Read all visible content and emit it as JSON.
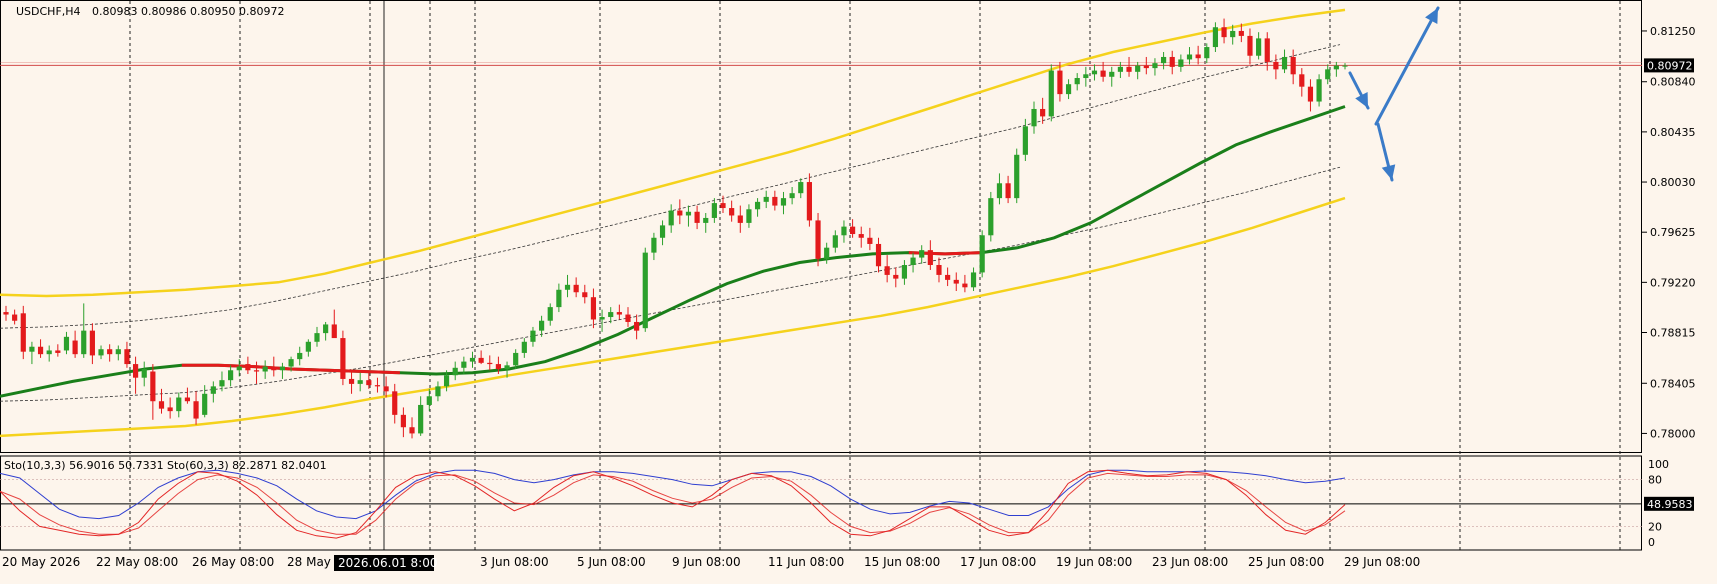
{
  "header": {
    "symbol": "USDCHF,H4",
    "ohlc": "0.80983 0.80986 0.80950 0.80972"
  },
  "price_axis": {
    "ticks": [
      "0.81250",
      "0.80840",
      "0.80435",
      "0.80030",
      "0.79625",
      "0.79220",
      "0.78815",
      "0.78405",
      "0.78000"
    ],
    "tick_values": [
      0.8125,
      0.8084,
      0.80435,
      0.8003,
      0.79625,
      0.7922,
      0.78815,
      0.78405,
      0.78
    ],
    "current_price_label": "0.80972",
    "current_price": 0.80972
  },
  "stoch_panel": {
    "label": "Sto(10,3,3) 56.9016 50.7331  Sto(60,3,3) 82.2871 82.0401",
    "ticks": [
      "100",
      "80",
      "20",
      "0"
    ],
    "tick_values": [
      100,
      80,
      20,
      0
    ],
    "current_label": "48.9583",
    "current_value": 48.9583
  },
  "time_axis": {
    "labels": [
      "20 May 2026",
      "22 May 08:00",
      "26 May 08:00",
      "28 May",
      "3 Jun 08:00",
      "5 Jun 08:00",
      "9 Jun 08:00",
      "11 Jun 08:00",
      "15 Jun 08:00",
      "17 Jun 08:00",
      "19 Jun 08:00",
      "23 Jun 08:00",
      "25 Jun 08:00",
      "29 Jun 08:00"
    ],
    "cursor_label": "2026.06.01 8:00"
  },
  "colors": {
    "background": "#fdf5ec",
    "bull": "#2ca02c",
    "bear": "#e31a1c",
    "ma": "#1a7f1a",
    "band_outer": "#f5d21c",
    "band_inner": "#333333",
    "stoch_fast": "#e32626",
    "stoch_slow": "#2f3fd0",
    "arrows": "#3a7bc8",
    "price_line": "#d24a4a"
  },
  "chart_data": {
    "type": "candlestick",
    "instrument": "USDCHF",
    "timeframe": "H4",
    "y_range": [
      0.7785,
      0.815
    ],
    "candles_ohlc": [
      [
        0.7898,
        0.7903,
        0.7891,
        0.7896
      ],
      [
        0.7896,
        0.79,
        0.7888,
        0.7891
      ],
      [
        0.7897,
        0.7903,
        0.786,
        0.7866
      ],
      [
        0.7866,
        0.7874,
        0.7856,
        0.787
      ],
      [
        0.787,
        0.7876,
        0.7861,
        0.7864
      ],
      [
        0.7864,
        0.7871,
        0.7858,
        0.7867
      ],
      [
        0.7867,
        0.7872,
        0.7862,
        0.7865
      ],
      [
        0.7867,
        0.7882,
        0.7864,
        0.7878
      ],
      [
        0.7875,
        0.7883,
        0.7861,
        0.7864
      ],
      [
        0.7864,
        0.7905,
        0.7861,
        0.7883
      ],
      [
        0.7883,
        0.7889,
        0.7856,
        0.7863
      ],
      [
        0.7863,
        0.7871,
        0.786,
        0.7868
      ],
      [
        0.7868,
        0.7872,
        0.7858,
        0.7864
      ],
      [
        0.7864,
        0.7871,
        0.7859,
        0.7868
      ],
      [
        0.7868,
        0.7874,
        0.7853,
        0.7856
      ],
      [
        0.7856,
        0.7862,
        0.7832,
        0.7845
      ],
      [
        0.7845,
        0.7858,
        0.7838,
        0.7852
      ],
      [
        0.785,
        0.7856,
        0.7811,
        0.7826
      ],
      [
        0.7826,
        0.7836,
        0.7816,
        0.782
      ],
      [
        0.7821,
        0.7829,
        0.7812,
        0.7818
      ],
      [
        0.7818,
        0.7833,
        0.7813,
        0.7829
      ],
      [
        0.7829,
        0.7837,
        0.7824,
        0.7826
      ],
      [
        0.7826,
        0.7834,
        0.7807,
        0.7812
      ],
      [
        0.7815,
        0.7839,
        0.7813,
        0.7832
      ],
      [
        0.7832,
        0.7842,
        0.7825,
        0.7838
      ],
      [
        0.7838,
        0.785,
        0.7834,
        0.7843
      ],
      [
        0.7843,
        0.7855,
        0.7838,
        0.7851
      ],
      [
        0.7851,
        0.786,
        0.7846,
        0.7854
      ],
      [
        0.7856,
        0.7862,
        0.7848,
        0.7851
      ],
      [
        0.7851,
        0.7858,
        0.784,
        0.785
      ],
      [
        0.785,
        0.7859,
        0.7844,
        0.7854
      ],
      [
        0.7854,
        0.7862,
        0.7846,
        0.7851
      ],
      [
        0.7851,
        0.7857,
        0.7844,
        0.7854
      ],
      [
        0.7854,
        0.7862,
        0.785,
        0.786
      ],
      [
        0.786,
        0.787,
        0.7855,
        0.7865
      ],
      [
        0.7866,
        0.7876,
        0.7862,
        0.7874
      ],
      [
        0.7874,
        0.7886,
        0.787,
        0.7881
      ],
      [
        0.7881,
        0.789,
        0.7875,
        0.7888
      ],
      [
        0.7888,
        0.79,
        0.7883,
        0.7877
      ],
      [
        0.7877,
        0.7883,
        0.7839,
        0.7844
      ],
      [
        0.7844,
        0.785,
        0.7832,
        0.784
      ],
      [
        0.784,
        0.7849,
        0.7834,
        0.7843
      ],
      [
        0.7843,
        0.7849,
        0.7836,
        0.7839
      ],
      [
        0.7839,
        0.7845,
        0.7833,
        0.7838
      ],
      [
        0.7838,
        0.7846,
        0.7829,
        0.7834
      ],
      [
        0.7834,
        0.784,
        0.7808,
        0.7815
      ],
      [
        0.7815,
        0.7821,
        0.7797,
        0.7805
      ],
      [
        0.7805,
        0.7813,
        0.7796,
        0.78
      ],
      [
        0.78,
        0.783,
        0.7798,
        0.7823
      ],
      [
        0.7823,
        0.7836,
        0.7818,
        0.783
      ],
      [
        0.783,
        0.7842,
        0.7826,
        0.7838
      ],
      [
        0.7838,
        0.7851,
        0.7834,
        0.7847
      ],
      [
        0.7847,
        0.7858,
        0.7843,
        0.7853
      ],
      [
        0.7853,
        0.7862,
        0.7848,
        0.7858
      ],
      [
        0.7858,
        0.7866,
        0.7853,
        0.7861
      ],
      [
        0.7861,
        0.7867,
        0.7856,
        0.7857
      ],
      [
        0.7857,
        0.7863,
        0.7851,
        0.7856
      ],
      [
        0.7856,
        0.7862,
        0.7848,
        0.7852
      ],
      [
        0.7852,
        0.7858,
        0.7845,
        0.7855
      ],
      [
        0.7855,
        0.7868,
        0.7852,
        0.7865
      ],
      [
        0.7865,
        0.7877,
        0.7861,
        0.7874
      ],
      [
        0.7874,
        0.7886,
        0.787,
        0.7883
      ],
      [
        0.7883,
        0.7895,
        0.7878,
        0.7891
      ],
      [
        0.7891,
        0.7905,
        0.7887,
        0.7902
      ],
      [
        0.7902,
        0.7921,
        0.7898,
        0.7916
      ],
      [
        0.7916,
        0.7928,
        0.791,
        0.792
      ],
      [
        0.792,
        0.7926,
        0.791,
        0.7914
      ],
      [
        0.7914,
        0.792,
        0.7905,
        0.791
      ],
      [
        0.791,
        0.7917,
        0.7885,
        0.7892
      ],
      [
        0.7892,
        0.79,
        0.7882,
        0.7894
      ],
      [
        0.7894,
        0.7902,
        0.7889,
        0.7898
      ],
      [
        0.7898,
        0.7904,
        0.7892,
        0.7896
      ],
      [
        0.7896,
        0.7902,
        0.7886,
        0.789
      ],
      [
        0.789,
        0.7896,
        0.7876,
        0.7883
      ],
      [
        0.7885,
        0.795,
        0.7882,
        0.7946
      ],
      [
        0.7946,
        0.7962,
        0.794,
        0.7958
      ],
      [
        0.7958,
        0.7972,
        0.7952,
        0.7968
      ],
      [
        0.7968,
        0.7985,
        0.7962,
        0.798
      ],
      [
        0.798,
        0.7989,
        0.7969,
        0.7976
      ],
      [
        0.7976,
        0.7984,
        0.7967,
        0.7979
      ],
      [
        0.7979,
        0.7984,
        0.7965,
        0.797
      ],
      [
        0.797,
        0.7978,
        0.7962,
        0.7974
      ],
      [
        0.7974,
        0.799,
        0.797,
        0.7986
      ],
      [
        0.7986,
        0.7992,
        0.7978,
        0.7982
      ],
      [
        0.7982,
        0.7988,
        0.7971,
        0.7976
      ],
      [
        0.7976,
        0.7984,
        0.7962,
        0.797
      ],
      [
        0.797,
        0.7985,
        0.7966,
        0.7981
      ],
      [
        0.7981,
        0.799,
        0.7975,
        0.7987
      ],
      [
        0.7987,
        0.7996,
        0.7982,
        0.7991
      ],
      [
        0.7991,
        0.7996,
        0.798,
        0.7984
      ],
      [
        0.7984,
        0.7995,
        0.7977,
        0.799
      ],
      [
        0.799,
        0.7999,
        0.7985,
        0.7994
      ],
      [
        0.7994,
        0.8006,
        0.799,
        0.8003
      ],
      [
        0.8003,
        0.801,
        0.7967,
        0.7972
      ],
      [
        0.7972,
        0.7978,
        0.7935,
        0.7941
      ],
      [
        0.7941,
        0.7954,
        0.7937,
        0.795
      ],
      [
        0.795,
        0.7964,
        0.7946,
        0.796
      ],
      [
        0.796,
        0.7972,
        0.7954,
        0.7967
      ],
      [
        0.7967,
        0.7973,
        0.7958,
        0.7961
      ],
      [
        0.7961,
        0.7967,
        0.795,
        0.7958
      ],
      [
        0.7958,
        0.7966,
        0.7948,
        0.7953
      ],
      [
        0.7953,
        0.7958,
        0.793,
        0.7935
      ],
      [
        0.7935,
        0.7944,
        0.7922,
        0.7928
      ],
      [
        0.7928,
        0.7934,
        0.7918,
        0.7925
      ],
      [
        0.7925,
        0.794,
        0.792,
        0.7936
      ],
      [
        0.7936,
        0.7946,
        0.793,
        0.7942
      ],
      [
        0.7942,
        0.7952,
        0.7937,
        0.7948
      ],
      [
        0.7948,
        0.7956,
        0.7932,
        0.7936
      ],
      [
        0.7936,
        0.7942,
        0.7922,
        0.7928
      ],
      [
        0.7928,
        0.7934,
        0.7919,
        0.7924
      ],
      [
        0.7924,
        0.793,
        0.7915,
        0.7921
      ],
      [
        0.7921,
        0.7928,
        0.7914,
        0.7918
      ],
      [
        0.7918,
        0.7934,
        0.7915,
        0.793
      ],
      [
        0.793,
        0.7964,
        0.7926,
        0.796
      ],
      [
        0.796,
        0.7995,
        0.7955,
        0.799
      ],
      [
        0.799,
        0.801,
        0.7985,
        0.8002
      ],
      [
        0.8002,
        0.8008,
        0.7986,
        0.799
      ],
      [
        0.799,
        0.803,
        0.7986,
        0.8025
      ],
      [
        0.8025,
        0.8054,
        0.802,
        0.8048
      ],
      [
        0.8048,
        0.8068,
        0.8042,
        0.8062
      ],
      [
        0.8062,
        0.8071,
        0.805,
        0.8056
      ],
      [
        0.8056,
        0.8098,
        0.8052,
        0.8093
      ],
      [
        0.8093,
        0.81,
        0.8068,
        0.8074
      ],
      [
        0.8074,
        0.8086,
        0.807,
        0.8082
      ],
      [
        0.8082,
        0.8091,
        0.8077,
        0.8087
      ],
      [
        0.8087,
        0.8096,
        0.808,
        0.809
      ],
      [
        0.809,
        0.8098,
        0.8085,
        0.8093
      ],
      [
        0.8093,
        0.81,
        0.8084,
        0.8088
      ],
      [
        0.8088,
        0.8096,
        0.808,
        0.8092
      ],
      [
        0.8092,
        0.81,
        0.8087,
        0.8096
      ],
      [
        0.8096,
        0.8104,
        0.8088,
        0.8092
      ],
      [
        0.8092,
        0.81,
        0.8086,
        0.8097
      ],
      [
        0.8097,
        0.8104,
        0.809,
        0.8095
      ],
      [
        0.8095,
        0.8103,
        0.8089,
        0.8099
      ],
      [
        0.8099,
        0.8108,
        0.8094,
        0.8104
      ],
      [
        0.8104,
        0.8109,
        0.809,
        0.8096
      ],
      [
        0.8096,
        0.8106,
        0.8092,
        0.8102
      ],
      [
        0.8102,
        0.8112,
        0.8098,
        0.8106
      ],
      [
        0.8106,
        0.8113,
        0.8098,
        0.8103
      ],
      [
        0.8103,
        0.8115,
        0.8099,
        0.8112
      ],
      [
        0.8112,
        0.8132,
        0.8108,
        0.8128
      ],
      [
        0.8128,
        0.8135,
        0.8115,
        0.812
      ],
      [
        0.812,
        0.813,
        0.8114,
        0.8125
      ],
      [
        0.8125,
        0.8131,
        0.8116,
        0.8121
      ],
      [
        0.8121,
        0.8127,
        0.8098,
        0.8105
      ],
      [
        0.8105,
        0.8124,
        0.8102,
        0.8119
      ],
      [
        0.8119,
        0.8124,
        0.8093,
        0.81
      ],
      [
        0.81,
        0.8106,
        0.8086,
        0.8094
      ],
      [
        0.8094,
        0.811,
        0.8091,
        0.8104
      ],
      [
        0.8104,
        0.811,
        0.8082,
        0.809
      ],
      [
        0.809,
        0.8095,
        0.8072,
        0.808
      ],
      [
        0.808,
        0.8086,
        0.806,
        0.8068
      ],
      [
        0.8068,
        0.809,
        0.8064,
        0.8086
      ],
      [
        0.8086,
        0.8098,
        0.8082,
        0.8094
      ],
      [
        0.8094,
        0.81,
        0.8088,
        0.8097
      ],
      [
        0.8097,
        0.8099,
        0.8094,
        0.8097
      ]
    ],
    "moving_average": [
      0.783,
      0.7836,
      0.7842,
      0.7847,
      0.7852,
      0.7855,
      0.7855,
      0.7854,
      0.7852,
      0.7851,
      0.785,
      0.7849,
      0.7848,
      0.7849,
      0.7852,
      0.7858,
      0.7868,
      0.788,
      0.7894,
      0.7908,
      0.7921,
      0.7931,
      0.7938,
      0.7942,
      0.7945,
      0.7946,
      0.7945,
      0.7946,
      0.795,
      0.7958,
      0.797,
      0.7986,
      0.8002,
      0.8018,
      0.8033,
      0.8044,
      0.8054,
      0.8064
    ],
    "band_upper": [
      0.7912,
      0.7911,
      0.7912,
      0.7914,
      0.7916,
      0.7919,
      0.7922,
      0.7929,
      0.7938,
      0.7947,
      0.7957,
      0.7967,
      0.7977,
      0.7987,
      0.7997,
      0.8007,
      0.8017,
      0.8027,
      0.8038,
      0.805,
      0.8062,
      0.8074,
      0.8086,
      0.8098,
      0.8108,
      0.8116,
      0.8124,
      0.8131,
      0.8137,
      0.8142
    ],
    "band_lower": [
      0.7798,
      0.78,
      0.7802,
      0.7804,
      0.7806,
      0.781,
      0.7815,
      0.7821,
      0.7828,
      0.7834,
      0.784,
      0.7847,
      0.7853,
      0.7859,
      0.7865,
      0.7871,
      0.7877,
      0.7883,
      0.7889,
      0.7895,
      0.7902,
      0.791,
      0.7918,
      0.7926,
      0.7935,
      0.7945,
      0.7955,
      0.7966,
      0.7978,
      0.799
    ],
    "band_middle_upper": [
      0.7885,
      0.7886,
      0.7888,
      0.7891,
      0.7895,
      0.79,
      0.7907,
      0.7915,
      0.7923,
      0.7931,
      0.794,
      0.7948,
      0.7957,
      0.7966,
      0.7975,
      0.7984,
      0.7993,
      0.8002,
      0.8011,
      0.802,
      0.8029,
      0.8038,
      0.8047,
      0.8057,
      0.8067,
      0.8077,
      0.8087,
      0.8096,
      0.8105,
      0.8114
    ],
    "band_middle_lower": [
      0.7826,
      0.7827,
      0.7829,
      0.7831,
      0.7833,
      0.7837,
      0.7842,
      0.7848,
      0.7854,
      0.7861,
      0.7868,
      0.7875,
      0.7882,
      0.7889,
      0.7896,
      0.7903,
      0.791,
      0.7917,
      0.7924,
      0.7931,
      0.7938,
      0.7945,
      0.7952,
      0.796,
      0.7968,
      0.7977,
      0.7986,
      0.7995,
      0.8005,
      0.8015
    ],
    "stoch_fast": [
      65,
      40,
      20,
      15,
      10,
      8,
      10,
      25,
      55,
      75,
      90,
      88,
      78,
      60,
      35,
      15,
      8,
      5,
      12,
      40,
      70,
      85,
      90,
      85,
      72,
      55,
      40,
      50,
      70,
      85,
      90,
      82,
      72,
      60,
      50,
      45,
      60,
      80,
      88,
      85,
      72,
      50,
      25,
      10,
      8,
      15,
      30,
      45,
      45,
      30,
      15,
      8,
      12,
      40,
      75,
      90,
      92,
      88,
      85,
      86,
      90,
      88,
      80,
      60,
      35,
      15,
      10,
      25,
      48
    ],
    "stoch_slow": [
      65,
      55,
      35,
      22,
      14,
      10,
      10,
      18,
      40,
      62,
      80,
      86,
      82,
      70,
      50,
      28,
      15,
      10,
      10,
      28,
      55,
      75,
      85,
      86,
      78,
      63,
      50,
      48,
      60,
      76,
      86,
      84,
      78,
      66,
      56,
      50,
      55,
      70,
      82,
      84,
      78,
      60,
      38,
      20,
      12,
      14,
      24,
      38,
      44,
      36,
      22,
      12,
      12,
      28,
      60,
      82,
      88,
      86,
      84,
      84,
      86,
      86,
      80,
      66,
      45,
      25,
      14,
      22,
      40
    ],
    "stoch_slow_fast": [
      88,
      82,
      62,
      42,
      32,
      30,
      34,
      50,
      70,
      82,
      90,
      92,
      88,
      82,
      72,
      55,
      40,
      32,
      30,
      40,
      60,
      78,
      88,
      92,
      92,
      88,
      80,
      76,
      80,
      86,
      90,
      90,
      88,
      84,
      80,
      74,
      72,
      80,
      88,
      90,
      90,
      84,
      72,
      55,
      42,
      36,
      38,
      46,
      52,
      50,
      42,
      34,
      34,
      45,
      68,
      86,
      92,
      92,
      90,
      90,
      90,
      91,
      90,
      88,
      85,
      80,
      76,
      78,
      82
    ]
  }
}
